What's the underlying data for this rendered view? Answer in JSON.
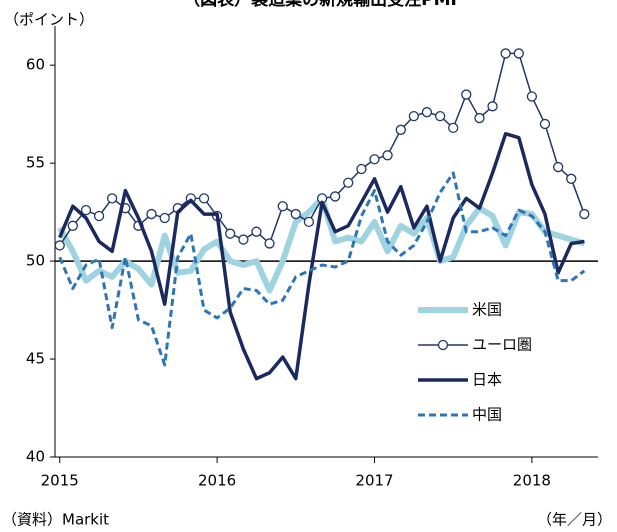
{
  "chart_data": {
    "type": "line",
    "title": "（図表）製造業の新規輸出受注PMI",
    "y_label": "（ポイント）",
    "x_label": "（年／月）",
    "source": "（資料）Markit",
    "x": [
      2015,
      2015.083,
      2015.167,
      2015.25,
      2015.333,
      2015.417,
      2015.5,
      2015.583,
      2015.667,
      2015.75,
      2015.833,
      2015.917,
      2016,
      2016.083,
      2016.167,
      2016.25,
      2016.333,
      2016.417,
      2016.5,
      2016.583,
      2016.667,
      2016.75,
      2016.833,
      2016.917,
      2017,
      2017.083,
      2017.167,
      2017.25,
      2017.333,
      2017.417,
      2017.5,
      2017.583,
      2017.667,
      2017.75,
      2017.833,
      2017.917,
      2018,
      2018.083,
      2018.167,
      2018.25,
      2018.333
    ],
    "xlim": [
      2014.97,
      2018.42
    ],
    "xticks": [
      2015,
      2016,
      2017,
      2018
    ],
    "ylim": [
      40,
      62
    ],
    "yticks": [
      40,
      45,
      50,
      55,
      60
    ],
    "hline": 50,
    "series": [
      {
        "name": "米国",
        "color": "#9fd3e0",
        "style": "thick",
        "values": [
          51.7,
          50.5,
          49.0,
          49.5,
          49.2,
          50.0,
          49.6,
          48.8,
          51.3,
          49.4,
          49.5,
          50.6,
          51.0,
          50.0,
          49.8,
          50.0,
          48.5,
          50.0,
          52.0,
          52.5,
          53.2,
          51.0,
          51.2,
          51.0,
          52.0,
          50.5,
          51.8,
          51.4,
          52.2,
          50.0,
          50.2,
          51.8,
          52.7,
          52.3,
          50.8,
          52.5,
          52.4,
          51.5,
          51.3,
          51.1,
          50.9
        ]
      },
      {
        "name": "ユーロ圏",
        "color": "#1f3864",
        "style": "marker",
        "values": [
          50.8,
          51.8,
          52.6,
          52.3,
          53.2,
          52.7,
          51.8,
          52.4,
          52.2,
          52.7,
          53.2,
          53.2,
          52.3,
          51.4,
          51.1,
          51.5,
          50.9,
          52.8,
          52.4,
          52.0,
          53.2,
          53.3,
          54.0,
          54.7,
          55.2,
          55.4,
          56.7,
          57.4,
          57.6,
          57.4,
          56.8,
          58.5,
          57.3,
          57.9,
          60.6,
          60.6,
          58.4,
          57.0,
          54.8,
          54.2,
          52.4
        ]
      },
      {
        "name": "日本",
        "color": "#1a2a5e",
        "style": "bold",
        "values": [
          51.2,
          52.8,
          52.2,
          51.0,
          50.5,
          53.6,
          52.2,
          50.5,
          47.8,
          52.5,
          53.1,
          52.4,
          52.4,
          47.4,
          45.5,
          44.0,
          44.3,
          45.1,
          44.0,
          48.8,
          53.0,
          51.5,
          51.8,
          53.0,
          54.2,
          52.5,
          53.8,
          51.7,
          52.8,
          50.0,
          52.2,
          53.2,
          52.7,
          54.5,
          56.5,
          56.3,
          53.9,
          52.4,
          49.4,
          50.9,
          51.0
        ]
      },
      {
        "name": "中国",
        "color": "#2e75b6",
        "style": "dashed",
        "values": [
          50.2,
          48.6,
          49.8,
          50.1,
          46.6,
          50.2,
          47.0,
          46.7,
          44.7,
          50.2,
          51.4,
          47.5,
          47.1,
          47.6,
          48.6,
          48.5,
          47.8,
          48.0,
          49.2,
          49.5,
          49.8,
          49.7,
          50.0,
          52.3,
          53.6,
          51.0,
          50.3,
          50.8,
          52.0,
          53.5,
          54.5,
          51.5,
          51.5,
          51.7,
          51.3,
          52.6,
          52.3,
          51.5,
          49.0,
          49.0,
          49.5
        ]
      }
    ]
  }
}
